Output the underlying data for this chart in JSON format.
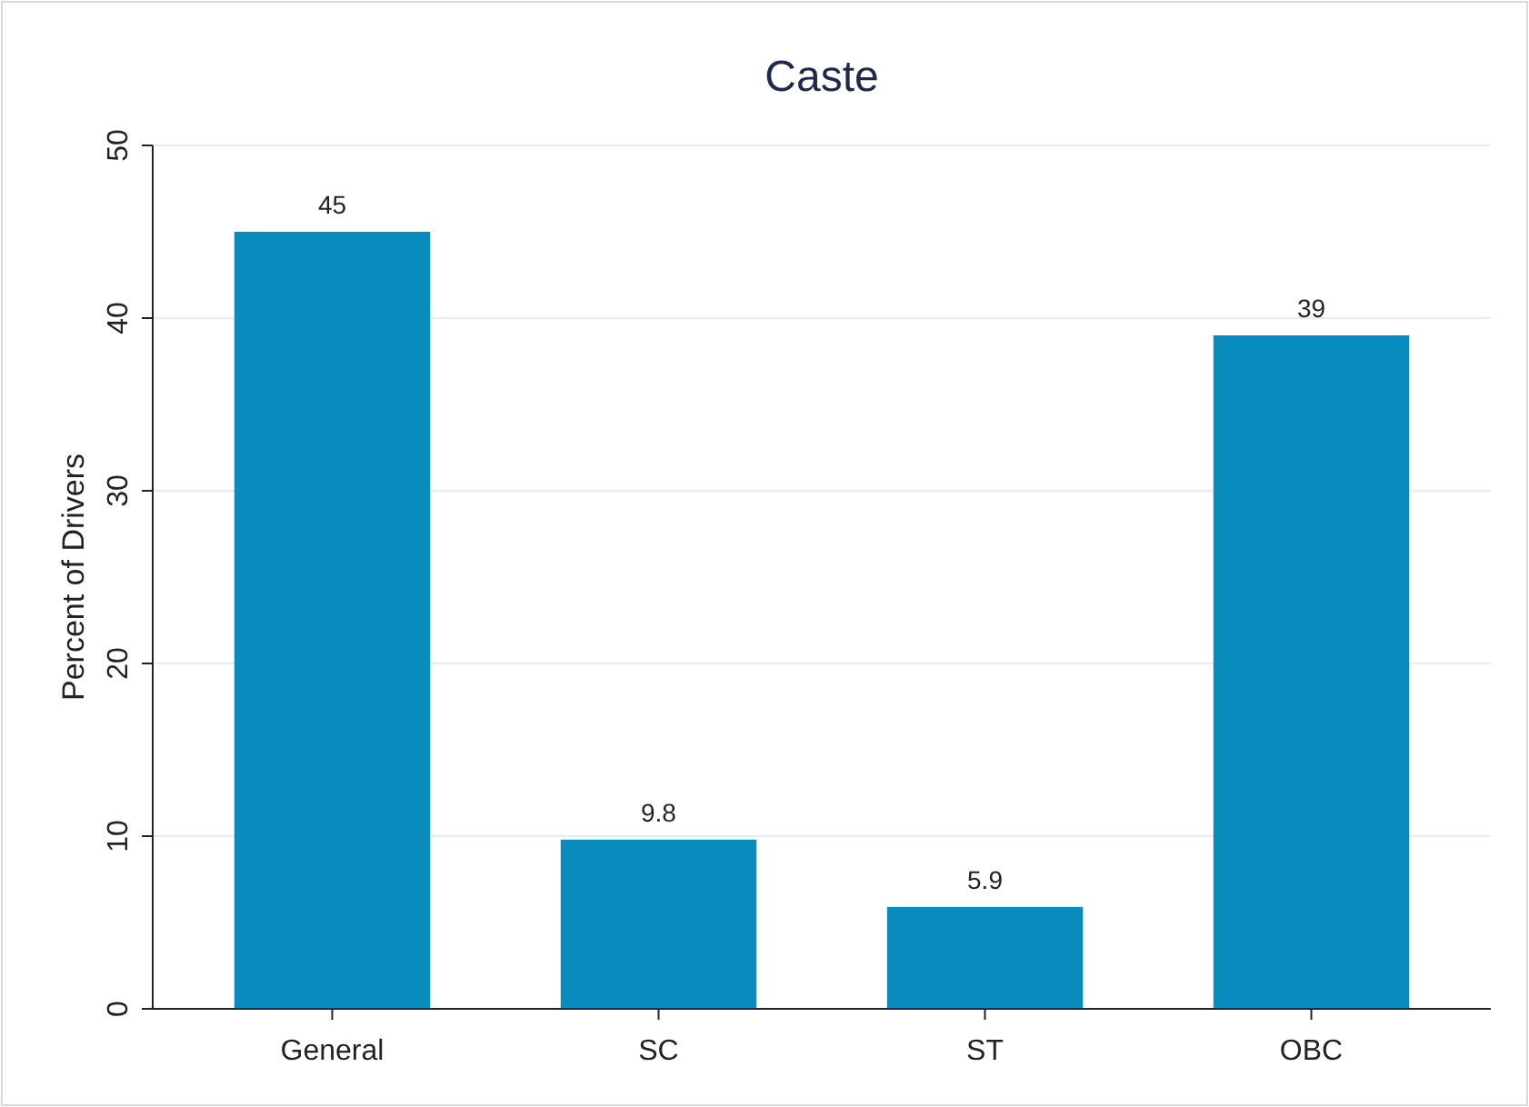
{
  "chart_data": {
    "type": "bar",
    "title": "Caste",
    "ylabel": "Percent of Drivers",
    "categories": [
      "General",
      "SC",
      "ST",
      "OBC"
    ],
    "values": [
      45,
      9.8,
      5.9,
      39
    ],
    "color": "#0a8bbd",
    "ylim": [
      0,
      50
    ],
    "yticks": [
      0,
      10,
      20,
      30,
      40,
      50
    ],
    "grid": "y",
    "data_labels": true
  }
}
